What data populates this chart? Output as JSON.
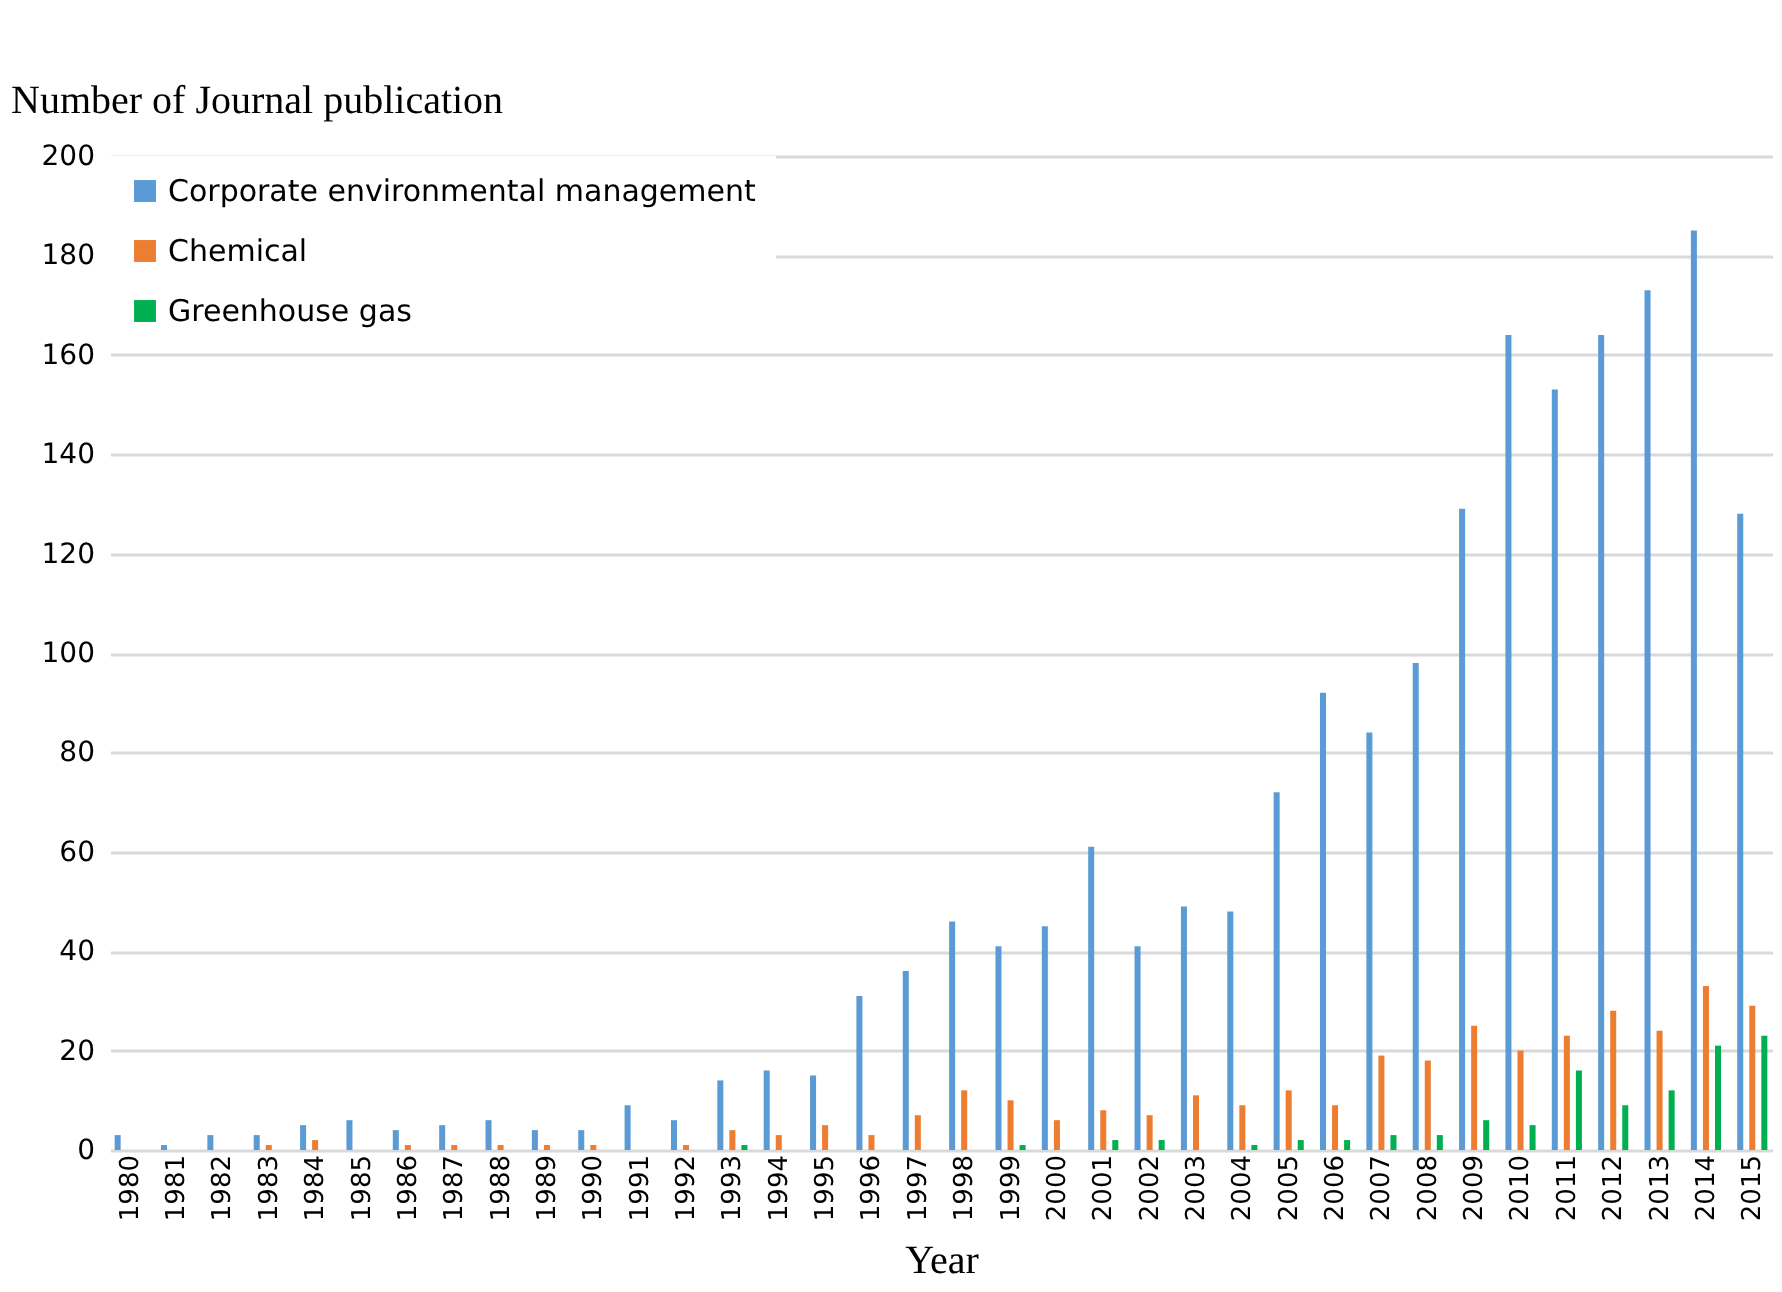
{
  "chart_data": {
    "type": "bar",
    "ylabel": "Number of Journal publication",
    "xlabel": "Year",
    "categories": [
      "1980",
      "1981",
      "1982",
      "1983",
      "1984",
      "1985",
      "1986",
      "1987",
      "1988",
      "1989",
      "1990",
      "1991",
      "1992",
      "1993",
      "1994",
      "1995",
      "1996",
      "1997",
      "1998",
      "1999",
      "2000",
      "2001",
      "2002",
      "2003",
      "2004",
      "2005",
      "2006",
      "2007",
      "2008",
      "2009",
      "2010",
      "2011",
      "2012",
      "2013",
      "2014",
      "2015"
    ],
    "series": [
      {
        "name": "Corporate environmental management",
        "color": "#5b9bd5",
        "values": [
          3,
          1,
          3,
          3,
          5,
          6,
          4,
          5,
          6,
          4,
          4,
          9,
          6,
          14,
          16,
          15,
          31,
          36,
          46,
          41,
          45,
          61,
          41,
          49,
          48,
          72,
          92,
          84,
          98,
          129,
          164,
          153,
          164,
          173,
          185,
          128
        ]
      },
      {
        "name": "Chemical",
        "color": "#ed7d31",
        "values": [
          0,
          0,
          0,
          1,
          2,
          0,
          1,
          1,
          1,
          1,
          1,
          0,
          1,
          4,
          3,
          5,
          3,
          7,
          12,
          10,
          6,
          8,
          7,
          11,
          9,
          12,
          9,
          19,
          18,
          25,
          20,
          23,
          28,
          24,
          33,
          29
        ]
      },
      {
        "name": "Greenhouse gas",
        "color": "#00b050",
        "values": [
          0,
          0,
          0,
          0,
          0,
          0,
          0,
          0,
          0,
          0,
          0,
          0,
          0,
          1,
          0,
          0,
          0,
          0,
          0,
          1,
          0,
          2,
          2,
          0,
          1,
          2,
          2,
          3,
          3,
          6,
          5,
          16,
          9,
          12,
          21,
          23
        ]
      }
    ],
    "ylim": [
      0,
      200
    ],
    "yticks": [
      0,
      20,
      40,
      60,
      80,
      100,
      120,
      140,
      160,
      180,
      200
    ],
    "grid": "y",
    "legend": "top left"
  }
}
